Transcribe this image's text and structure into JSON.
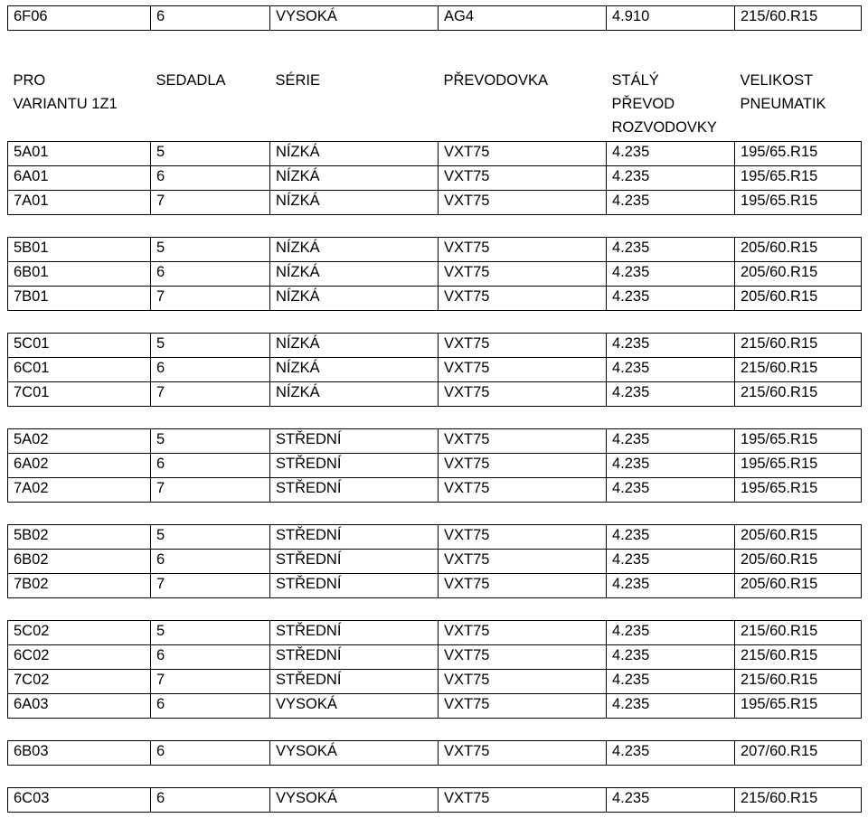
{
  "topRow": [
    "6F06",
    "6",
    "VYSOKÁ",
    "AG4",
    "4.910",
    "215/60.R15"
  ],
  "headerRow1": [
    "PRO",
    "SEDADLA",
    "SÉRIE",
    "PŘEVODOVKA",
    "STÁLÝ",
    "VELIKOST"
  ],
  "headerRow2": [
    "VARIANTU 1Z1",
    "",
    "",
    "",
    "PŘEVOD",
    "PNEUMATIK"
  ],
  "headerRow3": [
    "",
    "",
    "",
    "",
    "ROZVODOVKY",
    ""
  ],
  "groups": [
    [
      [
        "5A01",
        "5",
        "NÍZKÁ",
        "VXT75",
        "4.235",
        "195/65.R15"
      ],
      [
        "6A01",
        "6",
        "NÍZKÁ",
        "VXT75",
        "4.235",
        "195/65.R15"
      ],
      [
        "7A01",
        "7",
        "NÍZKÁ",
        "VXT75",
        "4.235",
        "195/65.R15"
      ]
    ],
    [
      [
        "5B01",
        "5",
        "NÍZKÁ",
        "VXT75",
        "4.235",
        "205/60.R15"
      ],
      [
        "6B01",
        "6",
        "NÍZKÁ",
        "VXT75",
        "4.235",
        "205/60.R15"
      ],
      [
        "7B01",
        "7",
        "NÍZKÁ",
        "VXT75",
        "4.235",
        "205/60.R15"
      ]
    ],
    [
      [
        "5C01",
        "5",
        "NÍZKÁ",
        "VXT75",
        "4.235",
        "215/60.R15"
      ],
      [
        "6C01",
        "6",
        "NÍZKÁ",
        "VXT75",
        "4.235",
        "215/60.R15"
      ],
      [
        "7C01",
        "7",
        "NÍZKÁ",
        "VXT75",
        "4.235",
        "215/60.R15"
      ]
    ],
    [
      [
        "5A02",
        "5",
        "STŘEDNÍ",
        "VXT75",
        "4.235",
        "195/65.R15"
      ],
      [
        "6A02",
        "6",
        "STŘEDNÍ",
        "VXT75",
        "4.235",
        "195/65.R15"
      ],
      [
        "7A02",
        "7",
        "STŘEDNÍ",
        "VXT75",
        "4.235",
        "195/65.R15"
      ]
    ],
    [
      [
        "5B02",
        "5",
        "STŘEDNÍ",
        "VXT75",
        "4.235",
        "205/60.R15"
      ],
      [
        "6B02",
        "6",
        "STŘEDNÍ",
        "VXT75",
        "4.235",
        "205/60.R15"
      ],
      [
        "7B02",
        "7",
        "STŘEDNÍ",
        "VXT75",
        "4.235",
        "205/60.R15"
      ]
    ],
    [
      [
        "5C02",
        "5",
        "STŘEDNÍ",
        "VXT75",
        "4.235",
        "215/60.R15"
      ],
      [
        "6C02",
        "6",
        "STŘEDNÍ",
        "VXT75",
        "4.235",
        "215/60.R15"
      ],
      [
        "7C02",
        "7",
        "STŘEDNÍ",
        "VXT75",
        "4.235",
        "215/60.R15"
      ],
      [
        "6A03",
        "6",
        "VYSOKÁ",
        "VXT75",
        "4.235",
        "195/65.R15"
      ]
    ],
    [
      [
        "6B03",
        "6",
        "VYSOKÁ",
        "VXT75",
        "4.235",
        "207/60.R15"
      ]
    ],
    [
      [
        "6C03",
        "6",
        "VYSOKÁ",
        "VXT75",
        "4.235",
        "215/60.R15"
      ]
    ]
  ]
}
